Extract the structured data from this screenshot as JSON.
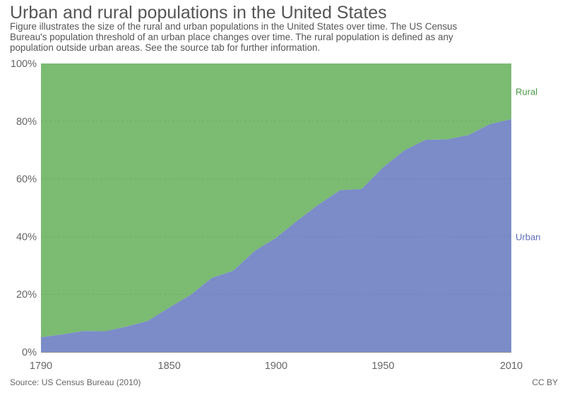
{
  "header": {
    "title": "Urban and rural populations in the United States",
    "subtitle": "Figure illustrates the size of the rural and urban populations in the United States over time. The US Census Bureau's population threshold of an urban place changes over time. The rural population is defined as any population outside urban areas. See the source tab for further information."
  },
  "footer": {
    "source": "Source: US Census Bureau (2010)",
    "license": "CC BY"
  },
  "colors": {
    "urban": "#7b8cc8",
    "rural": "#7bbb72",
    "urban_label": "#5b6cb8",
    "rural_label": "#4a9a45"
  },
  "chart_data": {
    "type": "area",
    "stacked": true,
    "x": [
      1790,
      1800,
      1810,
      1820,
      1830,
      1840,
      1850,
      1860,
      1870,
      1880,
      1890,
      1900,
      1910,
      1920,
      1930,
      1940,
      1950,
      1960,
      1970,
      1980,
      1990,
      2000,
      2010
    ],
    "series": [
      {
        "name": "Urban",
        "values": [
          5.1,
          6.1,
          7.3,
          7.2,
          8.8,
          10.8,
          15.4,
          19.8,
          25.7,
          28.2,
          35.1,
          39.6,
          45.6,
          51.2,
          56.1,
          56.5,
          64.0,
          69.9,
          73.6,
          73.7,
          75.2,
          79.0,
          80.7
        ]
      },
      {
        "name": "Rural",
        "values": [
          94.9,
          93.9,
          92.7,
          92.8,
          91.2,
          89.2,
          84.6,
          80.2,
          74.3,
          71.8,
          64.9,
          60.4,
          54.4,
          48.8,
          43.9,
          43.5,
          36.0,
          30.1,
          26.4,
          26.3,
          24.8,
          21.0,
          19.3
        ]
      }
    ],
    "xticks": [
      "1790",
      "1850",
      "1900",
      "1950",
      "2010"
    ],
    "yticks": [
      "0%",
      "20%",
      "40%",
      "60%",
      "80%",
      "100%"
    ],
    "xlim": [
      1790,
      2010
    ],
    "ylim": [
      0,
      100
    ],
    "grid": true,
    "legend": "right-inline"
  }
}
